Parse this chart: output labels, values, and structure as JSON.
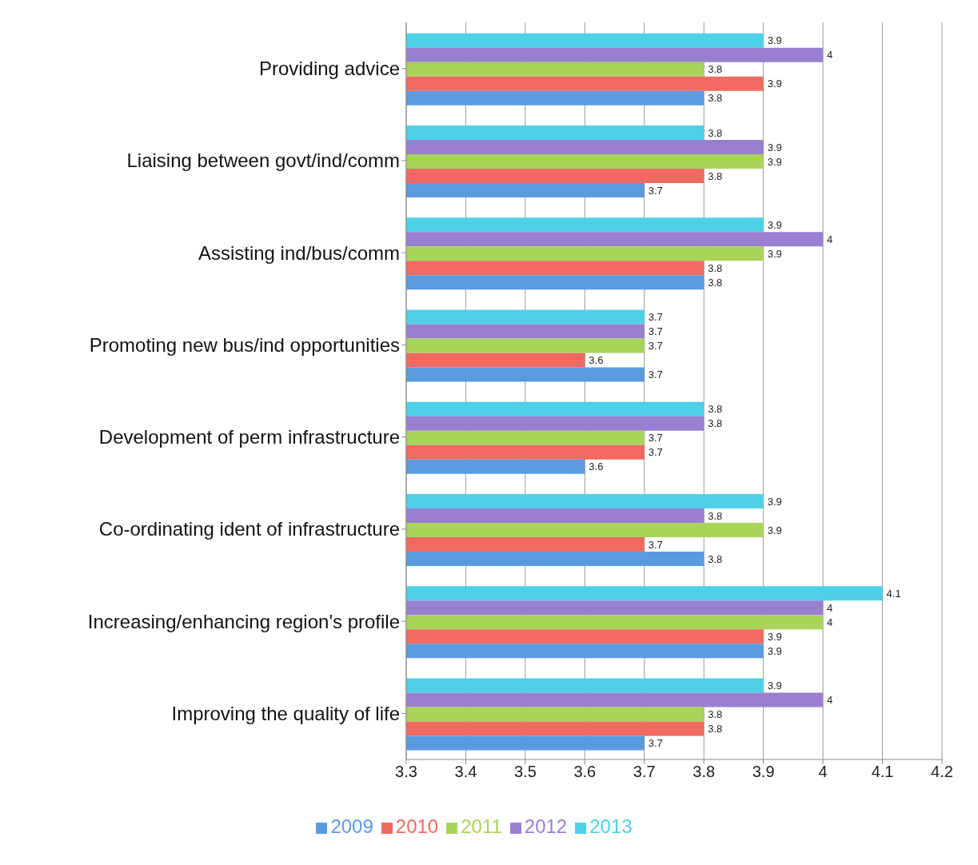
{
  "chart_data": {
    "type": "bar",
    "orientation": "horizontal",
    "categories": [
      "Providing advice",
      "Liaising between govt/ind/comm",
      "Assisting ind/bus/comm",
      "Promoting new bus/ind opportunities",
      "Development of perm infrastructure",
      "Co-ordinating ident of infrastructure",
      "Increasing/enhancing region's profile",
      "Improving the quality of life"
    ],
    "series": [
      {
        "name": "2013",
        "color": "#4dd0e8",
        "values": [
          3.9,
          3.8,
          3.9,
          3.7,
          3.8,
          3.9,
          4.1,
          3.9
        ]
      },
      {
        "name": "2012",
        "color": "#9a7fd0",
        "values": [
          4,
          3.9,
          4,
          3.7,
          3.8,
          3.8,
          4,
          4
        ]
      },
      {
        "name": "2011",
        "color": "#a8d45a",
        "values": [
          3.8,
          3.9,
          3.9,
          3.7,
          3.7,
          3.9,
          4,
          3.8
        ]
      },
      {
        "name": "2010",
        "color": "#f06a62",
        "values": [
          3.9,
          3.8,
          3.8,
          3.6,
          3.7,
          3.7,
          3.9,
          3.8
        ]
      },
      {
        "name": "2009",
        "color": "#5a9be0",
        "values": [
          3.8,
          3.7,
          3.8,
          3.7,
          3.6,
          3.8,
          3.9,
          3.7
        ]
      }
    ],
    "xlim": [
      3.3,
      4.2
    ],
    "xticks": [
      3.3,
      3.4,
      3.5,
      3.6,
      3.7,
      3.8,
      3.9,
      4,
      4.1,
      4.2
    ],
    "grid": "x",
    "legend": "bottom",
    "data_labels": true
  }
}
